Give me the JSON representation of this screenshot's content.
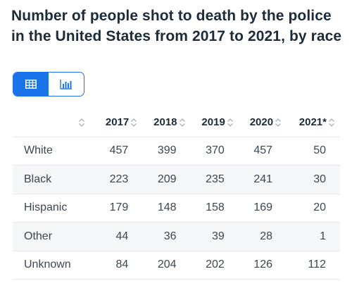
{
  "title": "Number of people shot to death by the police in the United States from 2017 to 2021, by race",
  "view_toggle": {
    "table_icon": "table-icon",
    "chart_icon": "bar-chart-icon",
    "active": "table",
    "accent_color": "#1a73e8"
  },
  "table": {
    "headers": [
      "",
      "2017",
      "2018",
      "2019",
      "2020",
      "2021*"
    ],
    "rows": [
      {
        "label": "White",
        "values": [
          "457",
          "399",
          "370",
          "457",
          "50"
        ]
      },
      {
        "label": "Black",
        "values": [
          "223",
          "209",
          "235",
          "241",
          "30"
        ]
      },
      {
        "label": "Hispanic",
        "values": [
          "179",
          "148",
          "158",
          "169",
          "20"
        ]
      },
      {
        "label": "Other",
        "values": [
          "44",
          "36",
          "39",
          "28",
          "1"
        ]
      },
      {
        "label": "Unknown",
        "values": [
          "84",
          "204",
          "202",
          "126",
          "112"
        ]
      }
    ]
  },
  "chart_data": {
    "type": "table",
    "title": "Number of people shot to death by the police in the United States from 2017 to 2021, by race",
    "columns": [
      "2017",
      "2018",
      "2019",
      "2020",
      "2021*"
    ],
    "series": [
      {
        "name": "White",
        "values": [
          457,
          399,
          370,
          457,
          50
        ]
      },
      {
        "name": "Black",
        "values": [
          223,
          209,
          235,
          241,
          30
        ]
      },
      {
        "name": "Hispanic",
        "values": [
          179,
          148,
          158,
          169,
          20
        ]
      },
      {
        "name": "Other",
        "values": [
          44,
          36,
          39,
          28,
          1
        ]
      },
      {
        "name": "Unknown",
        "values": [
          84,
          204,
          202,
          126,
          112
        ]
      }
    ]
  }
}
